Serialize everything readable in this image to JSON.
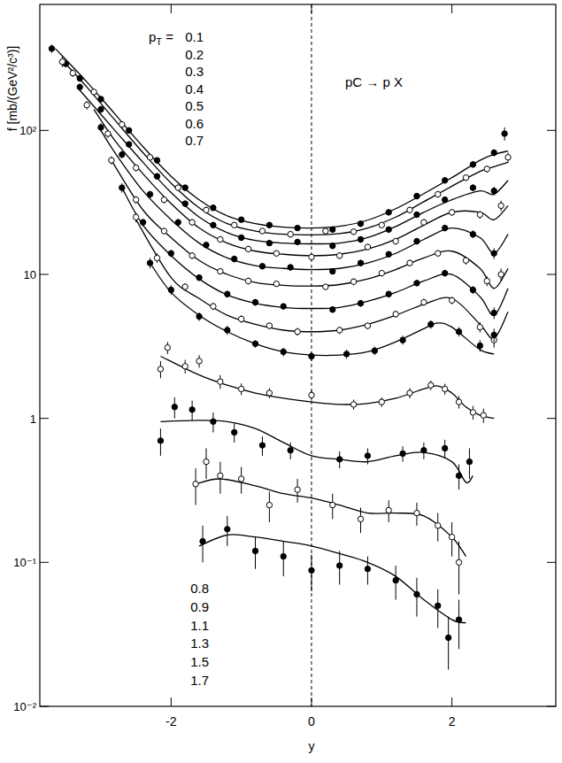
{
  "chart_data": {
    "type": "scatter",
    "x_label": "y",
    "y_label": "f [mb/(GeV²/c³)]",
    "annotation": "pC → p X",
    "legend_title": "pT =",
    "reference_x": 0,
    "log": "y",
    "xlim": [
      -3.87,
      3.48
    ],
    "ylim": [
      0.01,
      750
    ],
    "xticks": [
      -2,
      0,
      2
    ],
    "yticks": [
      {
        "value": 0.01,
        "label": "10⁻²"
      },
      {
        "value": 0.1,
        "label": "10⁻¹"
      },
      1,
      10,
      {
        "value": 100,
        "label": "10²"
      }
    ],
    "series": [
      {
        "name": "0.1",
        "marker": "filled_circle",
        "x": [
          -3.7,
          -3.5,
          -3.3,
          -3.0,
          -2.6,
          -2.2,
          -1.8,
          -1.4,
          -1.0,
          -0.6,
          -0.2,
          0.3,
          0.7,
          1.1,
          1.5,
          1.9,
          2.3,
          2.6,
          2.75
        ],
        "values": [
          370,
          290,
          230,
          165,
          100,
          62,
          40,
          29,
          24,
          22,
          21,
          20.5,
          22.5,
          27,
          35,
          45,
          58,
          70,
          95
        ],
        "errors": [
          25,
          15,
          12,
          8,
          5,
          3,
          2,
          1.5,
          1.2,
          1.1,
          1,
          1,
          1.1,
          1.4,
          1.8,
          2.3,
          3,
          4,
          10
        ],
        "fit_x": [
          -3.65,
          -3.2,
          -2.8,
          -2.4,
          -2.0,
          -1.6,
          -1.2,
          -0.8,
          -0.4,
          0,
          0.4,
          0.8,
          1.2,
          1.6,
          2.0,
          2.4,
          2.6,
          2.8
        ],
        "fit_values": [
          370,
          217,
          130,
          77,
          48,
          33,
          25.5,
          22.5,
          21.3,
          21,
          21.6,
          23.8,
          28.6,
          36.4,
          47,
          62,
          68,
          72
        ]
      },
      {
        "name": "0.2",
        "marker": "open_circle",
        "x": [
          -3.55,
          -3.4,
          -3.1,
          -2.7,
          -2.3,
          -1.9,
          -1.5,
          -1.1,
          -0.7,
          -0.3,
          0.2,
          0.6,
          1.0,
          1.4,
          1.8,
          2.2,
          2.5,
          2.8
        ],
        "values": [
          300,
          250,
          185,
          110,
          65,
          40,
          28,
          22,
          20,
          19,
          20,
          19.8,
          22,
          28,
          36,
          47,
          54,
          65
        ],
        "errors": [
          25,
          15,
          10,
          6,
          3.5,
          2,
          1.5,
          1.1,
          1,
          1,
          1,
          1,
          1.1,
          1.4,
          1.8,
          2.5,
          3,
          5
        ],
        "fit_x": [
          -3.5,
          -3.2,
          -2.8,
          -2.4,
          -2.0,
          -1.6,
          -1.2,
          -0.8,
          -0.4,
          0,
          0.4,
          0.8,
          1.2,
          1.6,
          2.0,
          2.4,
          2.6,
          2.8
        ],
        "fit_values": [
          290,
          200,
          118,
          70,
          43,
          29,
          22.5,
          20,
          19,
          18.8,
          19.2,
          21,
          25,
          32,
          41,
          52,
          56,
          60
        ]
      },
      {
        "name": "0.3",
        "marker": "filled_circle",
        "x": [
          -3.3,
          -3.0,
          -2.6,
          -2.2,
          -1.8,
          -1.4,
          -1.0,
          -0.6,
          -0.2,
          0.3,
          0.7,
          1.1,
          1.5,
          1.9,
          2.3,
          2.6
        ],
        "values": [
          200,
          140,
          80,
          48,
          31,
          22,
          18,
          16.5,
          16.8,
          15.8,
          17.5,
          20.5,
          26,
          33,
          40,
          38
        ],
        "errors": [
          12,
          8,
          4,
          2.5,
          1.6,
          1.1,
          0.9,
          0.8,
          0.8,
          0.8,
          0.9,
          1,
          1.3,
          1.7,
          2.2,
          2.5
        ],
        "fit_x": [
          -3.3,
          -2.8,
          -2.4,
          -2.0,
          -1.6,
          -1.2,
          -0.8,
          -0.4,
          0,
          0.4,
          0.8,
          1.2,
          1.6,
          2.0,
          2.4,
          2.6,
          2.8
        ],
        "fit_values": [
          190,
          100,
          60,
          37,
          25,
          19.5,
          17.2,
          16.5,
          16.3,
          16.5,
          18,
          21.5,
          27,
          33,
          38,
          36,
          45
        ]
      },
      {
        "name": "0.4",
        "marker": "open_circle",
        "x": [
          -3.2,
          -2.9,
          -2.5,
          -2.1,
          -1.7,
          -1.3,
          -0.9,
          -0.5,
          0.0,
          0.4,
          0.8,
          1.2,
          1.6,
          2.0,
          2.4,
          2.7
        ],
        "values": [
          150,
          95,
          55,
          33,
          23,
          17.5,
          15,
          14,
          13.2,
          13.5,
          15.5,
          17,
          23,
          27,
          26,
          30
        ],
        "errors": [
          10,
          6,
          3,
          1.8,
          1.2,
          0.9,
          0.8,
          0.7,
          0.7,
          0.7,
          0.8,
          0.9,
          1.2,
          1.5,
          1.6,
          2.5
        ],
        "fit_x": [
          -3.1,
          -2.8,
          -2.4,
          -2.0,
          -1.6,
          -1.2,
          -0.8,
          -0.4,
          0,
          0.4,
          0.8,
          1.2,
          1.6,
          2.0,
          2.4,
          2.6,
          2.8
        ],
        "fit_values": [
          140,
          85,
          50,
          31,
          21,
          16.5,
          14.5,
          13.8,
          13.5,
          13.8,
          15,
          17.5,
          22,
          27,
          27,
          24,
          30
        ]
      },
      {
        "name": "0.5",
        "marker": "filled_circle",
        "x": [
          -3.0,
          -2.7,
          -2.3,
          -1.9,
          -1.5,
          -1.1,
          -0.7,
          -0.3,
          0.3,
          0.7,
          1.1,
          1.5,
          1.9,
          2.3,
          2.6
        ],
        "values": [
          105,
          68,
          36,
          23,
          16,
          12.8,
          11.4,
          11.2,
          10.5,
          12,
          13.8,
          17,
          21,
          19,
          14
        ],
        "errors": [
          7,
          4,
          2,
          1.2,
          0.8,
          0.7,
          0.6,
          0.6,
          0.5,
          0.6,
          0.7,
          0.9,
          1.1,
          1.2,
          1.2
        ],
        "fit_x": [
          -3.0,
          -2.8,
          -2.4,
          -2.0,
          -1.6,
          -1.2,
          -0.8,
          -0.4,
          0,
          0.4,
          0.8,
          1.2,
          1.6,
          2.0,
          2.4,
          2.6,
          2.8
        ],
        "fit_values": [
          100,
          70,
          38,
          24,
          16.5,
          13,
          11.5,
          11,
          10.8,
          11,
          12,
          14,
          17.5,
          21,
          18,
          14,
          19
        ]
      },
      {
        "name": "0.6",
        "marker": "open_circle",
        "x": [
          -2.85,
          -2.5,
          -2.1,
          -1.7,
          -1.3,
          -0.9,
          -0.5,
          0.2,
          0.6,
          1.0,
          1.4,
          1.8,
          2.2,
          2.5,
          2.7
        ],
        "values": [
          62,
          33,
          20,
          13.5,
          10.5,
          9,
          8.6,
          8.2,
          8.9,
          10.2,
          12,
          14,
          12.5,
          9,
          10
        ],
        "errors": [
          4,
          2,
          1.1,
          0.7,
          0.5,
          0.5,
          0.4,
          0.4,
          0.5,
          0.5,
          0.6,
          0.7,
          0.8,
          0.7,
          1
        ],
        "fit_x": [
          -2.85,
          -2.4,
          -2.0,
          -1.6,
          -1.2,
          -0.8,
          -0.4,
          0,
          0.4,
          0.8,
          1.2,
          1.6,
          2.0,
          2.4,
          2.6,
          2.8
        ],
        "fit_values": [
          62,
          28,
          18,
          12.5,
          10,
          8.8,
          8.4,
          8.3,
          8.5,
          9.3,
          10.8,
          13,
          14.5,
          11,
          8,
          11
        ]
      },
      {
        "name": "0.7",
        "marker": "filled_circle",
        "x": [
          -2.7,
          -2.4,
          -2.0,
          -1.6,
          -1.2,
          -0.8,
          -0.4,
          0.3,
          0.7,
          1.1,
          1.5,
          1.9,
          2.3,
          2.6
        ],
        "values": [
          40,
          23,
          14,
          9.5,
          7.3,
          6.4,
          6.0,
          5.7,
          6.3,
          7.3,
          8.7,
          10.2,
          7.8,
          5.4
        ],
        "errors": [
          3,
          1.4,
          0.8,
          0.5,
          0.4,
          0.35,
          0.3,
          0.3,
          0.35,
          0.4,
          0.45,
          0.55,
          0.5,
          0.5
        ],
        "fit_x": [
          -2.7,
          -2.4,
          -2.0,
          -1.6,
          -1.2,
          -0.8,
          -0.4,
          0,
          0.4,
          0.8,
          1.2,
          1.6,
          2.0,
          2.4,
          2.6,
          2.8
        ],
        "fit_values": [
          40,
          22,
          13.5,
          9.3,
          7.2,
          6.3,
          5.9,
          5.8,
          5.9,
          6.5,
          7.5,
          9,
          10,
          7,
          5.2,
          8
        ]
      },
      {
        "name": "0.8",
        "marker": "open_circle",
        "x": [
          -2.5,
          -2.2,
          -1.8,
          -1.4,
          -1.0,
          -0.6,
          -0.2,
          0.4,
          0.8,
          1.2,
          1.6,
          2.0,
          2.4,
          2.6
        ],
        "values": [
          25,
          13,
          8.2,
          6,
          4.9,
          4.4,
          4.0,
          4.1,
          4.4,
          5.3,
          6.4,
          6.6,
          4.3,
          3.5
        ],
        "errors": [
          2,
          1,
          0.5,
          0.35,
          0.3,
          0.25,
          0.25,
          0.25,
          0.25,
          0.3,
          0.35,
          0.4,
          0.35,
          0.4
        ],
        "fit_x": [
          -2.5,
          -2.0,
          -1.6,
          -1.2,
          -0.8,
          -0.4,
          0,
          0.4,
          0.8,
          1.2,
          1.6,
          2.0,
          2.4,
          2.6,
          2.8
        ],
        "fit_values": [
          24,
          9.5,
          6.8,
          5.2,
          4.5,
          4.1,
          4.0,
          4.1,
          4.5,
          5.2,
          6.2,
          6.8,
          4.5,
          3.6,
          5.5
        ]
      },
      {
        "name": "0.9",
        "marker": "filled_circle",
        "x": [
          -2.3,
          -2.0,
          -1.6,
          -1.2,
          -0.8,
          -0.4,
          0.0,
          0.5,
          0.9,
          1.3,
          1.7,
          2.1,
          2.4,
          2.6
        ],
        "values": [
          12,
          7.8,
          5.1,
          4.1,
          3.3,
          2.9,
          2.7,
          2.8,
          2.95,
          3.5,
          4.5,
          4.0,
          3.2,
          3.8
        ],
        "errors": [
          1,
          0.6,
          0.35,
          0.3,
          0.2,
          0.2,
          0.2,
          0.2,
          0.2,
          0.25,
          0.3,
          0.3,
          0.3,
          0.4
        ],
        "fit_x": [
          -2.3,
          -2.0,
          -1.6,
          -1.2,
          -0.8,
          -0.4,
          0,
          0.4,
          0.8,
          1.2,
          1.6,
          1.8,
          2.0,
          2.4,
          2.6
        ],
        "fit_values": [
          12,
          7.5,
          5.2,
          4.0,
          3.3,
          2.9,
          2.75,
          2.75,
          2.9,
          3.4,
          4.2,
          4.6,
          4.3,
          3.0,
          2.8
        ]
      },
      {
        "name": "1.1",
        "marker": "open_circle",
        "x": [
          -2.15,
          -2.05,
          -1.8,
          -1.6,
          -1.3,
          -1.0,
          -0.6,
          0.0,
          0.6,
          1.0,
          1.4,
          1.7,
          1.9,
          2.1,
          2.3,
          2.45
        ],
        "values": [
          2.2,
          3.1,
          2.3,
          2.5,
          1.8,
          1.6,
          1.5,
          1.45,
          1.25,
          1.3,
          1.5,
          1.7,
          1.6,
          1.3,
          1.1,
          1.05
        ],
        "errors": [
          0.3,
          0.3,
          0.25,
          0.25,
          0.2,
          0.15,
          0.12,
          0.12,
          0.1,
          0.1,
          0.12,
          0.13,
          0.14,
          0.13,
          0.12,
          0.12
        ],
        "fit_x": [
          -2.15,
          -1.6,
          -1.2,
          -0.8,
          -0.4,
          0,
          0.4,
          0.8,
          1.2,
          1.6,
          1.8,
          2.0,
          2.2,
          2.4,
          2.6
        ],
        "fit_values": [
          2.7,
          2.0,
          1.7,
          1.5,
          1.38,
          1.3,
          1.25,
          1.27,
          1.38,
          1.6,
          1.68,
          1.5,
          1.2,
          1.05,
          1.0
        ]
      },
      {
        "name": "1.3",
        "marker": "filled_circle",
        "x": [
          -2.15,
          -1.95,
          -1.7,
          -1.4,
          -1.1,
          -0.7,
          -0.3,
          0.4,
          0.8,
          1.3,
          1.6,
          1.9,
          2.1,
          2.25
        ],
        "values": [
          0.7,
          1.2,
          1.15,
          0.95,
          0.8,
          0.65,
          0.6,
          0.52,
          0.55,
          0.57,
          0.6,
          0.62,
          0.4,
          0.5
        ],
        "errors": [
          0.15,
          0.2,
          0.18,
          0.15,
          0.12,
          0.1,
          0.08,
          0.07,
          0.07,
          0.07,
          0.08,
          0.09,
          0.08,
          0.12
        ],
        "fit_x": [
          -2.15,
          -1.6,
          -1.2,
          -0.8,
          -0.4,
          0,
          0.4,
          0.8,
          1.2,
          1.6,
          2.0,
          2.2,
          2.3
        ],
        "fit_values": [
          0.95,
          0.97,
          0.95,
          0.85,
          0.68,
          0.55,
          0.52,
          0.5,
          0.55,
          0.58,
          0.5,
          0.36,
          0.4
        ]
      },
      {
        "name": "1.5",
        "marker": "open_circle",
        "x": [
          -1.65,
          -1.5,
          -1.3,
          -1.0,
          -0.6,
          -0.2,
          0.3,
          0.7,
          1.1,
          1.5,
          1.8,
          2.0,
          2.1
        ],
        "values": [
          0.35,
          0.5,
          0.4,
          0.38,
          0.25,
          0.32,
          0.25,
          0.2,
          0.23,
          0.22,
          0.18,
          0.15,
          0.1
        ],
        "errors": [
          0.1,
          0.12,
          0.1,
          0.08,
          0.06,
          0.06,
          0.05,
          0.04,
          0.04,
          0.04,
          0.04,
          0.04,
          0.04
        ],
        "fit_x": [
          -1.65,
          -1.3,
          -0.8,
          -0.4,
          0,
          0.4,
          0.8,
          1.2,
          1.6,
          2.0,
          2.2
        ],
        "fit_values": [
          0.35,
          0.38,
          0.34,
          0.3,
          0.28,
          0.25,
          0.22,
          0.22,
          0.21,
          0.15,
          0.11
        ]
      },
      {
        "name": "1.7",
        "marker": "filled_circle",
        "x": [
          -1.55,
          -1.2,
          -0.8,
          -0.4,
          0.0,
          0.4,
          0.8,
          1.2,
          1.5,
          1.8,
          1.95,
          2.1
        ],
        "values": [
          0.14,
          0.17,
          0.12,
          0.11,
          0.088,
          0.095,
          0.09,
          0.075,
          0.06,
          0.05,
          0.03,
          0.04
        ],
        "errors": [
          0.04,
          0.04,
          0.03,
          0.03,
          0.025,
          0.025,
          0.02,
          0.02,
          0.018,
          0.015,
          0.012,
          0.015
        ],
        "fit_x": [
          -1.6,
          -1.2,
          -0.8,
          -0.4,
          0,
          0.4,
          0.8,
          1.2,
          1.6,
          2.0,
          2.2
        ],
        "fit_values": [
          0.13,
          0.155,
          0.15,
          0.14,
          0.13,
          0.115,
          0.1,
          0.08,
          0.055,
          0.04,
          0.038
        ]
      }
    ]
  }
}
